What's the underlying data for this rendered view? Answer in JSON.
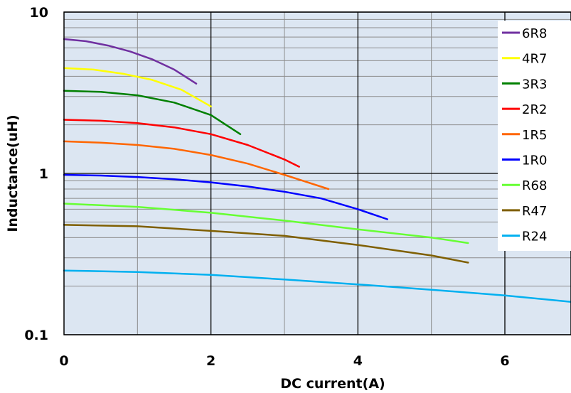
{
  "chart_data": {
    "type": "line",
    "xlabel": "DC current(A)",
    "ylabel": "Inductance(uH)",
    "xlim": [
      0,
      6.9
    ],
    "ylim": [
      0.1,
      10
    ],
    "yscale": "log",
    "x_ticks": [
      0,
      2,
      4,
      6
    ],
    "x_tick_labels": [
      "0",
      "2",
      "4",
      "6"
    ],
    "y_ticks": [
      0.1,
      1,
      10
    ],
    "y_tick_labels": [
      "0.1",
      "1",
      "10"
    ],
    "grid": true,
    "legend_position": "right",
    "plot_background": "#dce6f2",
    "series": [
      {
        "name": "6R8",
        "color": "#7030a0",
        "x": [
          0,
          0.3,
          0.6,
          0.9,
          1.2,
          1.5,
          1.8
        ],
        "y": [
          6.8,
          6.6,
          6.2,
          5.7,
          5.1,
          4.4,
          3.6
        ]
      },
      {
        "name": "4R7",
        "color": "#ffff00",
        "x": [
          0,
          0.4,
          0.8,
          1.2,
          1.6,
          2.0
        ],
        "y": [
          4.5,
          4.4,
          4.15,
          3.8,
          3.3,
          2.6
        ]
      },
      {
        "name": "3R3",
        "color": "#008000",
        "x": [
          0,
          0.5,
          1.0,
          1.5,
          2.0,
          2.4
        ],
        "y": [
          3.25,
          3.2,
          3.05,
          2.75,
          2.3,
          1.75
        ]
      },
      {
        "name": "2R2",
        "color": "#ff0000",
        "x": [
          0,
          0.5,
          1.0,
          1.5,
          2.0,
          2.5,
          3.0,
          3.2
        ],
        "y": [
          2.15,
          2.12,
          2.05,
          1.93,
          1.75,
          1.5,
          1.22,
          1.1
        ]
      },
      {
        "name": "1R5",
        "color": "#ff6600",
        "x": [
          0,
          0.5,
          1.0,
          1.5,
          2.0,
          2.5,
          3.0,
          3.6
        ],
        "y": [
          1.58,
          1.55,
          1.5,
          1.42,
          1.3,
          1.15,
          0.98,
          0.8
        ]
      },
      {
        "name": "1R0",
        "color": "#0000ff",
        "x": [
          0,
          0.5,
          1.0,
          1.5,
          2.0,
          2.5,
          3.0,
          3.5,
          4.0,
          4.4
        ],
        "y": [
          0.98,
          0.97,
          0.95,
          0.92,
          0.88,
          0.83,
          0.77,
          0.7,
          0.6,
          0.52
        ]
      },
      {
        "name": "R68",
        "color": "#66ff33",
        "x": [
          0,
          1,
          2,
          3,
          4,
          5,
          5.5
        ],
        "y": [
          0.65,
          0.62,
          0.57,
          0.51,
          0.45,
          0.4,
          0.37
        ]
      },
      {
        "name": "R47",
        "color": "#7f5f00",
        "x": [
          0,
          1,
          2,
          3,
          4,
          5,
          5.5
        ],
        "y": [
          0.48,
          0.47,
          0.44,
          0.41,
          0.36,
          0.31,
          0.28
        ]
      },
      {
        "name": "R24",
        "color": "#00b0f0",
        "x": [
          0,
          1,
          2,
          3,
          4,
          5,
          6,
          6.9
        ],
        "y": [
          0.25,
          0.245,
          0.235,
          0.22,
          0.205,
          0.19,
          0.175,
          0.16
        ]
      }
    ]
  }
}
